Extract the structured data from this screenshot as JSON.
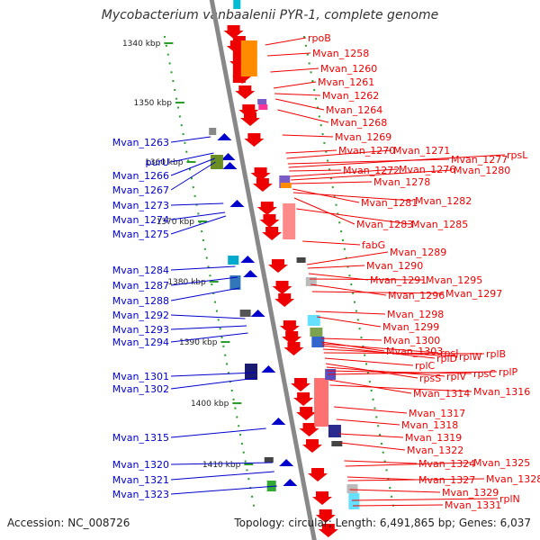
{
  "title": "Mycobacterium vanbaalenii PYR-1, complete genome",
  "footer": {
    "accession": "Accession: NC_008726",
    "summary": "Topology: circular; Length: 6,491,865 bp; Genes: 6,037"
  },
  "colors": {
    "forward": "#ee0000",
    "reverse": "#0000cc",
    "backbone": "#888888",
    "ticks": "#2a9d2a"
  },
  "scale_ticks": [
    "1340 kbp",
    "1350 kbp",
    "1360 kbp",
    "1370 kbp",
    "1380 kbp",
    "1390 kbp",
    "1400 kbp",
    "1410 kbp"
  ],
  "left_genes": [
    "Mvan_1263",
    "purU",
    "Mvan_1266",
    "Mvan_1267",
    "Mvan_1273",
    "Mvan_1274",
    "Mvan_1275",
    "Mvan_1284",
    "Mvan_1287",
    "Mvan_1288",
    "Mvan_1292",
    "Mvan_1293",
    "Mvan_1294",
    "Mvan_1301",
    "Mvan_1302",
    "Mvan_1315",
    "Mvan_1320",
    "Mvan_1321",
    "Mvan_1323"
  ],
  "right_genes": [
    "rpoB",
    "Mvan_1258",
    "Mvan_1260",
    "Mvan_1261",
    "Mvan_1262",
    "Mvan_1264",
    "Mvan_1268",
    "Mvan_1269",
    "Mvan_1270",
    "Mvan_1271",
    "Mvan_1277",
    "rpsL",
    "Mvan_1272",
    "Mvan_1276",
    "Mvan_1280",
    "Mvan_1278",
    "Mvan_1281",
    "Mvan_1282",
    "Mvan_1283",
    "Mvan_1285",
    "fabG",
    "Mvan_1289",
    "Mvan_1290",
    "Mvan_1291",
    "Mvan_1295",
    "Mvan_1296",
    "Mvan_1297",
    "Mvan_1298",
    "Mvan_1299",
    "Mvan_1300",
    "Mvan_1303",
    "rpsJ",
    "rplD",
    "rplW",
    "rplB",
    "rplC",
    "rpsS",
    "rplV",
    "rpsC",
    "rplP",
    "Mvan_1314",
    "Mvan_1316",
    "Mvan_1317",
    "Mvan_1318",
    "Mvan_1319",
    "Mvan_1322",
    "Mvan_1324",
    "Mvan_1325",
    "Mvan_1327",
    "Mvan_1328",
    "Mvan_1329",
    "rplN",
    "Mvan_1331"
  ]
}
